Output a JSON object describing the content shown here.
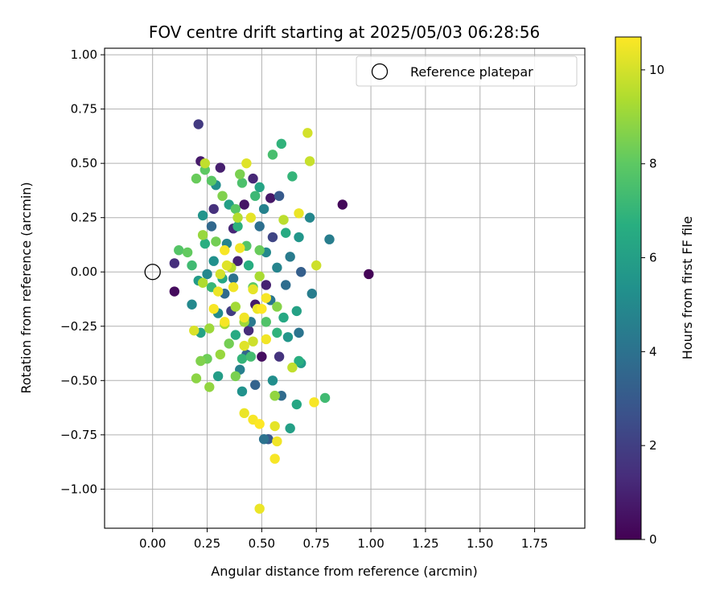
{
  "chart_data": {
    "type": "scatter",
    "title": "FOV centre drift starting at 2025/05/03 06:28:56",
    "xlabel": "Angular distance from reference (arcmin)",
    "ylabel": "Rotation from reference (arcmin)",
    "xlim": [
      -0.22,
      1.98
    ],
    "ylim": [
      -1.18,
      1.03
    ],
    "x_ticks": [
      0.0,
      0.25,
      0.5,
      0.75,
      1.0,
      1.25,
      1.5,
      1.75
    ],
    "x_tick_labels": [
      "0.00",
      "0.25",
      "0.50",
      "0.75",
      "1.00",
      "1.25",
      "1.50",
      "1.75"
    ],
    "y_ticks": [
      1.0,
      0.75,
      0.5,
      0.25,
      0.0,
      -0.25,
      -0.5,
      -0.75,
      -1.0
    ],
    "y_tick_labels": [
      "1.00",
      "0.75",
      "0.50",
      "0.25",
      "0.00",
      "−0.25",
      "−0.50",
      "−0.75",
      "−1.00"
    ],
    "grid": true,
    "legend": {
      "position": "top-right",
      "entries": [
        {
          "label": "Reference platepar",
          "marker": "open-circle",
          "color": "#000000"
        }
      ]
    },
    "reference_point": {
      "x": 0.0,
      "y": 0.0
    },
    "colorbar": {
      "label": "Hours from first FF file",
      "colormap": "viridis",
      "range": [
        0,
        10.7
      ],
      "ticks": [
        0,
        2,
        4,
        6,
        8,
        10
      ],
      "tick_labels": [
        "0",
        "2",
        "4",
        "6",
        "8",
        "10"
      ]
    },
    "series": [
      {
        "color_by": "hours",
        "points": [
          {
            "x": 0.21,
            "y": 0.68,
            "hours": 1.8
          },
          {
            "x": 0.22,
            "y": 0.51,
            "hours": 0.8
          },
          {
            "x": 0.31,
            "y": 0.48,
            "hours": 0.9
          },
          {
            "x": 0.87,
            "y": 0.31,
            "hours": 0.2
          },
          {
            "x": 0.99,
            "y": -0.01,
            "hours": 0.1
          },
          {
            "x": 0.1,
            "y": -0.09,
            "hours": 0.3
          },
          {
            "x": 0.1,
            "y": 0.04,
            "hours": 1.4
          },
          {
            "x": 0.28,
            "y": 0.29,
            "hours": 1.5
          },
          {
            "x": 0.46,
            "y": 0.43,
            "hours": 1.2
          },
          {
            "x": 0.54,
            "y": 0.34,
            "hours": 0.7
          },
          {
            "x": 0.39,
            "y": 0.05,
            "hours": 1.0
          },
          {
            "x": 0.47,
            "y": -0.15,
            "hours": 0.8
          },
          {
            "x": 0.5,
            "y": -0.39,
            "hours": 0.4
          },
          {
            "x": 0.58,
            "y": -0.39,
            "hours": 1.6
          },
          {
            "x": 0.42,
            "y": 0.31,
            "hours": 0.6
          },
          {
            "x": 0.37,
            "y": 0.2,
            "hours": 1.2
          },
          {
            "x": 0.52,
            "y": -0.06,
            "hours": 1.0
          },
          {
            "x": 0.36,
            "y": -0.18,
            "hours": 1.9
          },
          {
            "x": 0.55,
            "y": 0.16,
            "hours": 2.2
          },
          {
            "x": 0.44,
            "y": -0.27,
            "hours": 1.3
          },
          {
            "x": 0.58,
            "y": 0.35,
            "hours": 3.0
          },
          {
            "x": 0.27,
            "y": 0.21,
            "hours": 3.6
          },
          {
            "x": 0.29,
            "y": 0.4,
            "hours": 5.2
          },
          {
            "x": 0.47,
            "y": -0.52,
            "hours": 3.4
          },
          {
            "x": 0.51,
            "y": -0.77,
            "hours": 4.0
          },
          {
            "x": 0.53,
            "y": -0.77,
            "hours": 3.0
          },
          {
            "x": 0.59,
            "y": -0.57,
            "hours": 3.7
          },
          {
            "x": 0.68,
            "y": 0.0,
            "hours": 3.2
          },
          {
            "x": 0.73,
            "y": -0.1,
            "hours": 4.5
          },
          {
            "x": 0.67,
            "y": -0.28,
            "hours": 4.1
          },
          {
            "x": 0.81,
            "y": 0.15,
            "hours": 4.5
          },
          {
            "x": 0.72,
            "y": 0.25,
            "hours": 4.9
          },
          {
            "x": 0.67,
            "y": 0.16,
            "hours": 5.6
          },
          {
            "x": 0.63,
            "y": 0.07,
            "hours": 4.4
          },
          {
            "x": 0.61,
            "y": -0.06,
            "hours": 3.8
          },
          {
            "x": 0.57,
            "y": 0.02,
            "hours": 4.8
          },
          {
            "x": 0.54,
            "y": -0.13,
            "hours": 4.2
          },
          {
            "x": 0.52,
            "y": 0.09,
            "hours": 5.0
          },
          {
            "x": 0.49,
            "y": 0.21,
            "hours": 3.9
          },
          {
            "x": 0.51,
            "y": 0.29,
            "hours": 4.7
          },
          {
            "x": 0.45,
            "y": -0.23,
            "hours": 4.3
          },
          {
            "x": 0.43,
            "y": -0.38,
            "hours": 3.5
          },
          {
            "x": 0.4,
            "y": -0.45,
            "hours": 4.6
          },
          {
            "x": 0.41,
            "y": -0.55,
            "hours": 5.4
          },
          {
            "x": 0.37,
            "y": -0.03,
            "hours": 4.0
          },
          {
            "x": 0.34,
            "y": 0.13,
            "hours": 4.8
          },
          {
            "x": 0.33,
            "y": -0.1,
            "hours": 3.7
          },
          {
            "x": 0.3,
            "y": -0.19,
            "hours": 5.1
          },
          {
            "x": 0.28,
            "y": 0.05,
            "hours": 5.3
          },
          {
            "x": 0.25,
            "y": -0.01,
            "hours": 4.9
          },
          {
            "x": 0.23,
            "y": 0.26,
            "hours": 5.5
          },
          {
            "x": 0.18,
            "y": -0.15,
            "hours": 5.0
          },
          {
            "x": 0.21,
            "y": -0.04,
            "hours": 5.8
          },
          {
            "x": 0.3,
            "y": -0.48,
            "hours": 5.9
          },
          {
            "x": 0.55,
            "y": -0.5,
            "hours": 5.2
          },
          {
            "x": 0.63,
            "y": -0.72,
            "hours": 6.0
          },
          {
            "x": 0.66,
            "y": -0.61,
            "hours": 6.3
          },
          {
            "x": 0.67,
            "y": -0.41,
            "hours": 6.7
          },
          {
            "x": 0.68,
            "y": -0.42,
            "hours": 5.8
          },
          {
            "x": 0.62,
            "y": -0.3,
            "hours": 5.6
          },
          {
            "x": 0.66,
            "y": -0.18,
            "hours": 6.1
          },
          {
            "x": 0.6,
            "y": -0.21,
            "hours": 6.4
          },
          {
            "x": 0.57,
            "y": -0.28,
            "hours": 6.9
          },
          {
            "x": 0.61,
            "y": 0.18,
            "hours": 6.5
          },
          {
            "x": 0.64,
            "y": 0.44,
            "hours": 7.0
          },
          {
            "x": 0.59,
            "y": 0.59,
            "hours": 6.9
          },
          {
            "x": 0.49,
            "y": 0.39,
            "hours": 6.2
          },
          {
            "x": 0.47,
            "y": 0.35,
            "hours": 7.2
          },
          {
            "x": 0.44,
            "y": 0.03,
            "hours": 6.6
          },
          {
            "x": 0.39,
            "y": 0.21,
            "hours": 6.8
          },
          {
            "x": 0.35,
            "y": 0.31,
            "hours": 6.0
          },
          {
            "x": 0.32,
            "y": -0.03,
            "hours": 6.4
          },
          {
            "x": 0.27,
            "y": -0.07,
            "hours": 7.1
          },
          {
            "x": 0.24,
            "y": 0.13,
            "hours": 6.7
          },
          {
            "x": 0.18,
            "y": 0.03,
            "hours": 7.3
          },
          {
            "x": 0.22,
            "y": -0.28,
            "hours": 6.2
          },
          {
            "x": 0.38,
            "y": -0.29,
            "hours": 6.5
          },
          {
            "x": 0.41,
            "y": -0.4,
            "hours": 7.0
          },
          {
            "x": 0.55,
            "y": 0.54,
            "hours": 7.5
          },
          {
            "x": 0.79,
            "y": -0.58,
            "hours": 7.3
          },
          {
            "x": 0.56,
            "y": -0.57,
            "hours": 7.6
          },
          {
            "x": 0.45,
            "y": -0.39,
            "hours": 7.4
          },
          {
            "x": 0.52,
            "y": -0.23,
            "hours": 7.7
          },
          {
            "x": 0.43,
            "y": 0.12,
            "hours": 7.8
          },
          {
            "x": 0.38,
            "y": 0.29,
            "hours": 7.9
          },
          {
            "x": 0.41,
            "y": 0.41,
            "hours": 7.6
          },
          {
            "x": 0.27,
            "y": 0.42,
            "hours": 7.9
          },
          {
            "x": 0.24,
            "y": 0.47,
            "hours": 8.0
          },
          {
            "x": 0.2,
            "y": 0.43,
            "hours": 8.2
          },
          {
            "x": 0.16,
            "y": 0.09,
            "hours": 8.1
          },
          {
            "x": 0.12,
            "y": 0.1,
            "hours": 7.8
          },
          {
            "x": 0.25,
            "y": -0.4,
            "hours": 8.3
          },
          {
            "x": 0.35,
            "y": -0.33,
            "hours": 8.4
          },
          {
            "x": 0.38,
            "y": -0.48,
            "hours": 8.5
          },
          {
            "x": 0.46,
            "y": -0.07,
            "hours": 8.0
          },
          {
            "x": 0.49,
            "y": 0.1,
            "hours": 8.2
          },
          {
            "x": 0.57,
            "y": -0.16,
            "hours": 8.7
          },
          {
            "x": 0.29,
            "y": 0.14,
            "hours": 8.4
          },
          {
            "x": 0.32,
            "y": 0.35,
            "hours": 8.6
          },
          {
            "x": 0.4,
            "y": 0.45,
            "hours": 8.5
          },
          {
            "x": 0.2,
            "y": -0.49,
            "hours": 8.8
          },
          {
            "x": 0.22,
            "y": -0.41,
            "hours": 8.6
          },
          {
            "x": 0.26,
            "y": -0.53,
            "hours": 8.9
          },
          {
            "x": 0.31,
            "y": -0.38,
            "hours": 9.0
          },
          {
            "x": 0.56,
            "y": -0.57,
            "hours": 8.9
          },
          {
            "x": 0.42,
            "y": -0.23,
            "hours": 9.1
          },
          {
            "x": 0.38,
            "y": -0.16,
            "hours": 9.2
          },
          {
            "x": 0.33,
            "y": -0.24,
            "hours": 9.3
          },
          {
            "x": 0.26,
            "y": -0.26,
            "hours": 9.1
          },
          {
            "x": 0.23,
            "y": -0.05,
            "hours": 9.4
          },
          {
            "x": 0.23,
            "y": 0.17,
            "hours": 9.0
          },
          {
            "x": 0.36,
            "y": 0.02,
            "hours": 9.5
          },
          {
            "x": 0.49,
            "y": -0.02,
            "hours": 9.3
          },
          {
            "x": 0.6,
            "y": 0.24,
            "hours": 9.6
          },
          {
            "x": 0.24,
            "y": 0.5,
            "hours": 9.7
          },
          {
            "x": 0.39,
            "y": 0.25,
            "hours": 9.5
          },
          {
            "x": 0.72,
            "y": 0.51,
            "hours": 9.8
          },
          {
            "x": 0.75,
            "y": 0.03,
            "hours": 9.9
          },
          {
            "x": 0.64,
            "y": -0.44,
            "hours": 9.7
          },
          {
            "x": 0.46,
            "y": -0.32,
            "hours": 9.9
          },
          {
            "x": 0.31,
            "y": -0.01,
            "hours": 10.0
          },
          {
            "x": 0.19,
            "y": -0.27,
            "hours": 10.1
          },
          {
            "x": 0.43,
            "y": 0.5,
            "hours": 10.2
          },
          {
            "x": 0.71,
            "y": 0.64,
            "hours": 10.0
          },
          {
            "x": 0.45,
            "y": 0.25,
            "hours": 10.3
          },
          {
            "x": 0.67,
            "y": 0.27,
            "hours": 10.4
          },
          {
            "x": 0.4,
            "y": 0.11,
            "hours": 10.5
          },
          {
            "x": 0.33,
            "y": 0.1,
            "hours": 10.6
          },
          {
            "x": 0.34,
            "y": 0.03,
            "hours": 10.2
          },
          {
            "x": 0.3,
            "y": -0.09,
            "hours": 10.4
          },
          {
            "x": 0.28,
            "y": -0.17,
            "hours": 10.6
          },
          {
            "x": 0.37,
            "y": -0.07,
            "hours": 10.5
          },
          {
            "x": 0.46,
            "y": -0.08,
            "hours": 10.3
          },
          {
            "x": 0.52,
            "y": -0.12,
            "hours": 10.6
          },
          {
            "x": 0.48,
            "y": -0.17,
            "hours": 10.4
          },
          {
            "x": 0.5,
            "y": -0.17,
            "hours": 10.7
          },
          {
            "x": 0.42,
            "y": -0.21,
            "hours": 10.5
          },
          {
            "x": 0.33,
            "y": -0.23,
            "hours": 10.6
          },
          {
            "x": 0.42,
            "y": -0.34,
            "hours": 10.2
          },
          {
            "x": 0.52,
            "y": -0.31,
            "hours": 10.5
          },
          {
            "x": 0.42,
            "y": -0.65,
            "hours": 10.4
          },
          {
            "x": 0.46,
            "y": -0.68,
            "hours": 10.6
          },
          {
            "x": 0.49,
            "y": -0.7,
            "hours": 10.7
          },
          {
            "x": 0.56,
            "y": -0.71,
            "hours": 10.3
          },
          {
            "x": 0.57,
            "y": -0.78,
            "hours": 10.5
          },
          {
            "x": 0.56,
            "y": -0.86,
            "hours": 10.6
          },
          {
            "x": 0.49,
            "y": -1.09,
            "hours": 10.4
          },
          {
            "x": 0.74,
            "y": -0.6,
            "hours": 10.6
          }
        ]
      }
    ]
  }
}
